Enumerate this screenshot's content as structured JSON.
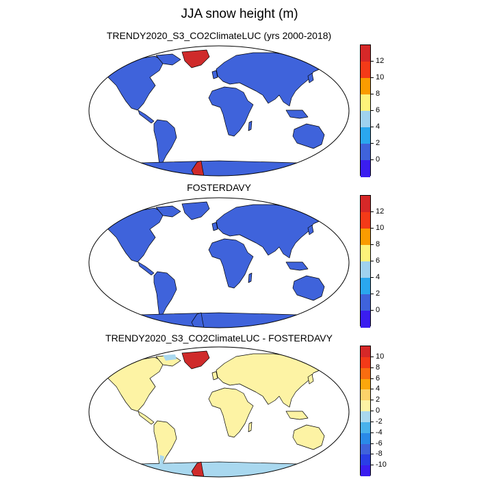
{
  "title": "JJA snow height (m)",
  "panels": [
    {
      "name": "trendy",
      "title": "TRENDY2020_S3_CO2ClimateLUC (yrs 2000-2018)",
      "land_color": "#3f63db",
      "greenland_color": "#cf2b2b",
      "antarctica_color": "#3f63db",
      "colorbar": {
        "labels": [
          "12",
          "10",
          "8",
          "6",
          "4",
          "2",
          "0"
        ],
        "colors": [
          "#d62828",
          "#f43a18",
          "#fa9c00",
          "#fdf27a",
          "#9fd2ef",
          "#2aa7ee",
          "#3f63db",
          "#3a1df0"
        ]
      }
    },
    {
      "name": "fosterdavy",
      "title": "FOSTERDAVY",
      "land_color": "#3f63db",
      "greenland_color": "#3f63db",
      "antarctica_color": "#3f63db",
      "colorbar": {
        "labels": [
          "12",
          "10",
          "8",
          "6",
          "4",
          "2",
          "0"
        ],
        "colors": [
          "#d62828",
          "#f43a18",
          "#fa9c00",
          "#fdf27a",
          "#9fd2ef",
          "#2aa7ee",
          "#3f63db",
          "#3a1df0"
        ]
      }
    },
    {
      "name": "difference",
      "title": "TRENDY2020_S3_CO2ClimateLUC - FOSTERDAVY",
      "land_color": "#fdf3a4",
      "greenland_color": "#cf2b2b",
      "antarctica_color": "#a9d8ef",
      "colorbar": {
        "labels": [
          "10",
          "8",
          "6",
          "4",
          "2",
          "0",
          "-2",
          "-4",
          "-6",
          "-8",
          "-10"
        ],
        "colors": [
          "#d62828",
          "#f43a18",
          "#fa6d10",
          "#fba70c",
          "#fdd36a",
          "#fdf3a4",
          "#a9d8ef",
          "#49b2ec",
          "#2a8ae8",
          "#3f63db",
          "#2a3ee6",
          "#3a1df0"
        ]
      }
    }
  ]
}
